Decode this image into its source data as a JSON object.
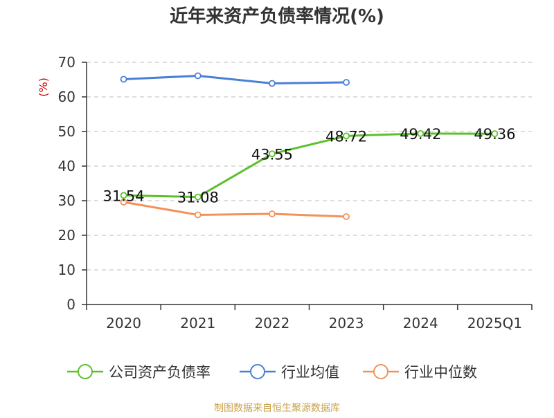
{
  "chart_data": {
    "type": "line",
    "title": "近年来资产负债率情况(%)",
    "ylabel": "(%)",
    "xlabel": "",
    "categories": [
      "2020",
      "2021",
      "2022",
      "2023",
      "2024",
      "2025Q1"
    ],
    "ylim": [
      0,
      70
    ],
    "yticks": [
      0,
      10,
      20,
      30,
      40,
      50,
      60,
      70
    ],
    "grid": true,
    "legend_position": "bottom",
    "series": [
      {
        "name": "公司资产负债率",
        "color": "#5cc02c",
        "values": [
          31.54,
          31.08,
          43.55,
          48.72,
          49.42,
          49.36
        ],
        "labels": [
          "31.54",
          "31.08",
          "43.55",
          "48.72",
          "49.42",
          "49.36"
        ],
        "show_labels": true
      },
      {
        "name": "行业均值",
        "color": "#4a7fd8",
        "values": [
          65.1,
          66.1,
          63.9,
          64.2,
          null,
          null
        ],
        "show_labels": false
      },
      {
        "name": "行业中位数",
        "color": "#f4915a",
        "values": [
          29.6,
          25.9,
          26.2,
          25.4,
          null,
          null
        ],
        "show_labels": false
      }
    ]
  },
  "source": "制图数据来自恒生聚源数据库"
}
